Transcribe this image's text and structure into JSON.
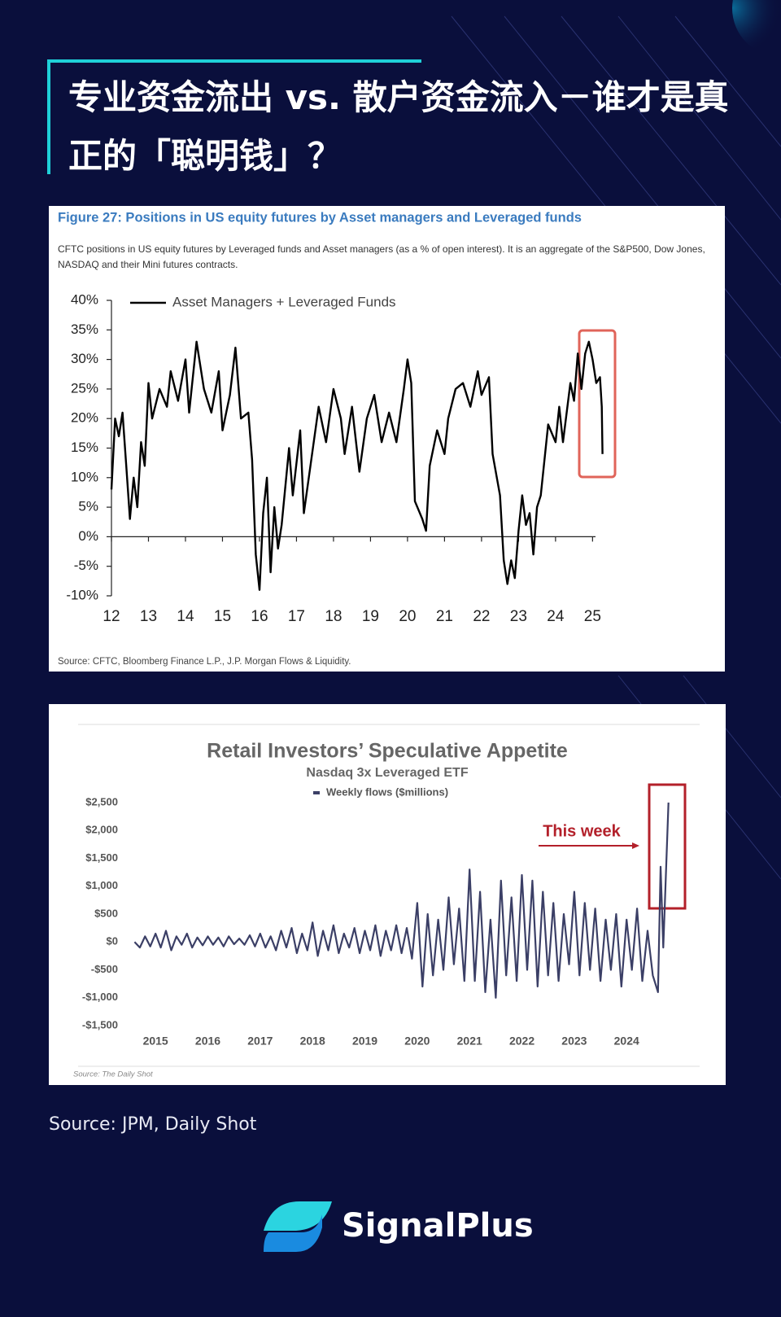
{
  "header": {
    "title": "专业资金流出 vs. 散户资金流入－谁才是真正的「聪明钱」？"
  },
  "chart_data": [
    {
      "type": "line",
      "title": "Figure 27: Positions in US equity futures by Asset managers and Leveraged funds",
      "subtitle": "CFTC positions in US equity futures by Leveraged funds and Asset managers (as a % of open interest). It is an aggregate of the S&P500, Dow Jones, NASDAQ and their Mini futures contracts.",
      "source": "Source: CFTC, Bloomberg Finance L.P., J.P. Morgan Flows & Liquidity.",
      "x": [
        12.0,
        12.1,
        12.2,
        12.3,
        12.4,
        12.5,
        12.6,
        12.7,
        12.8,
        12.9,
        13.0,
        13.1,
        13.3,
        13.5,
        13.6,
        13.8,
        14.0,
        14.1,
        14.3,
        14.5,
        14.7,
        14.9,
        15.0,
        15.2,
        15.35,
        15.5,
        15.7,
        15.8,
        15.9,
        16.0,
        16.1,
        16.2,
        16.3,
        16.4,
        16.5,
        16.6,
        16.8,
        16.9,
        17.1,
        17.2,
        17.4,
        17.6,
        17.8,
        18.0,
        18.2,
        18.3,
        18.5,
        18.7,
        18.9,
        19.1,
        19.3,
        19.5,
        19.7,
        19.9,
        20.0,
        20.1,
        20.2,
        20.4,
        20.5,
        20.6,
        20.8,
        21.0,
        21.1,
        21.3,
        21.5,
        21.7,
        21.9,
        22.0,
        22.2,
        22.3,
        22.5,
        22.6,
        22.7,
        22.8,
        22.9,
        23.0,
        23.1,
        23.2,
        23.3,
        23.4,
        23.5,
        23.6,
        23.8,
        24.0,
        24.1,
        24.2,
        24.4,
        24.5,
        24.6,
        24.7,
        24.8,
        24.9,
        25.0,
        25.1,
        25.2,
        25.25,
        25.27
      ],
      "series": [
        {
          "name": "Asset Managers + Leveraged Funds",
          "color": "#000000",
          "values": [
            8,
            20,
            17,
            21,
            12,
            3,
            10,
            5,
            16,
            12,
            26,
            20,
            25,
            22,
            28,
            23,
            30,
            21,
            33,
            25,
            21,
            28,
            18,
            24,
            32,
            20,
            21,
            13,
            -3,
            -9,
            4,
            10,
            -6,
            5,
            -2,
            2,
            15,
            7,
            18,
            4,
            13,
            22,
            16,
            25,
            20,
            14,
            22,
            11,
            20,
            24,
            16,
            21,
            16,
            25,
            30,
            26,
            6,
            3,
            1,
            12,
            18,
            14,
            20,
            25,
            26,
            22,
            28,
            24,
            27,
            14,
            7,
            -4,
            -8,
            -4,
            -7,
            1,
            7,
            2,
            4,
            -3,
            5,
            7,
            19,
            16,
            22,
            16,
            26,
            23,
            31,
            25,
            31,
            33,
            30,
            26,
            27,
            22,
            14
          ]
        }
      ],
      "xlim": [
        12,
        25.3
      ],
      "xticks": [
        12,
        13,
        14,
        15,
        16,
        17,
        18,
        19,
        20,
        21,
        22,
        23,
        24,
        25
      ],
      "ylim": [
        -10,
        40
      ],
      "yticks": [
        {
          "value": -10,
          "label": "-10%"
        },
        {
          "value": -5,
          "label": "-5%"
        },
        {
          "value": 0,
          "label": "0%"
        },
        {
          "value": 5,
          "label": "5%"
        },
        {
          "value": 10,
          "label": "10%"
        },
        {
          "value": 15,
          "label": "15%"
        },
        {
          "value": 20,
          "label": "20%"
        },
        {
          "value": 25,
          "label": "25%"
        },
        {
          "value": 30,
          "label": "30%"
        },
        {
          "value": 35,
          "label": "35%"
        },
        {
          "value": 40,
          "label": "40%"
        }
      ],
      "grid": false
    },
    {
      "type": "line",
      "title": "Retail Investors’ Speculative Appetite",
      "subtitle": "Nasdaq 3x Leveraged ETF",
      "annotation": "This week",
      "source": "Source: The Daily Shot",
      "x": [
        2014.6,
        2014.7,
        2014.8,
        2014.9,
        2015.0,
        2015.1,
        2015.2,
        2015.3,
        2015.4,
        2015.5,
        2015.6,
        2015.7,
        2015.8,
        2015.9,
        2016.0,
        2016.1,
        2016.2,
        2016.3,
        2016.4,
        2016.5,
        2016.6,
        2016.7,
        2016.8,
        2016.9,
        2017.0,
        2017.1,
        2017.2,
        2017.3,
        2017.4,
        2017.5,
        2017.6,
        2017.7,
        2017.8,
        2017.9,
        2018.0,
        2018.1,
        2018.2,
        2018.3,
        2018.4,
        2018.5,
        2018.6,
        2018.7,
        2018.8,
        2018.9,
        2019.0,
        2019.1,
        2019.2,
        2019.3,
        2019.4,
        2019.5,
        2019.6,
        2019.7,
        2019.8,
        2019.9,
        2020.0,
        2020.1,
        2020.2,
        2020.3,
        2020.4,
        2020.5,
        2020.6,
        2020.7,
        2020.8,
        2020.9,
        2021.0,
        2021.1,
        2021.2,
        2021.3,
        2021.4,
        2021.5,
        2021.6,
        2021.7,
        2021.8,
        2021.9,
        2022.0,
        2022.1,
        2022.2,
        2022.3,
        2022.4,
        2022.5,
        2022.6,
        2022.7,
        2022.8,
        2022.9,
        2023.0,
        2023.1,
        2023.2,
        2023.3,
        2023.4,
        2023.5,
        2023.6,
        2023.7,
        2023.8,
        2023.9,
        2024.0,
        2024.1,
        2024.2,
        2024.3,
        2024.4,
        2024.5,
        2024.6,
        2024.65,
        2024.7,
        2024.8
      ],
      "series": [
        {
          "name": "Weekly flows ($millions)",
          "color": "#3b3f66",
          "values": [
            0,
            -100,
            100,
            -80,
            150,
            -100,
            200,
            -150,
            100,
            -50,
            150,
            -100,
            80,
            -60,
            100,
            -50,
            80,
            -80,
            100,
            -40,
            60,
            -50,
            120,
            -80,
            150,
            -100,
            100,
            -150,
            200,
            -100,
            250,
            -200,
            150,
            -150,
            350,
            -250,
            200,
            -150,
            300,
            -200,
            150,
            -100,
            250,
            -200,
            200,
            -150,
            300,
            -250,
            200,
            -150,
            300,
            -200,
            250,
            -300,
            700,
            -800,
            500,
            -600,
            400,
            -500,
            800,
            -400,
            600,
            -700,
            1300,
            -700,
            900,
            -900,
            400,
            -1000,
            1100,
            -600,
            800,
            -700,
            1200,
            -500,
            1100,
            -800,
            900,
            -600,
            700,
            -700,
            500,
            -400,
            900,
            -600,
            700,
            -500,
            600,
            -700,
            400,
            -500,
            500,
            -800,
            400,
            -500,
            600,
            -700,
            200,
            -600,
            -900,
            1350,
            -100,
            2500
          ]
        }
      ],
      "xlim": [
        2014.5,
        2025.1
      ],
      "xticks": [
        2015,
        2016,
        2017,
        2018,
        2019,
        2020,
        2021,
        2022,
        2023,
        2024
      ],
      "ylim": [
        -1500,
        2500
      ],
      "yticks": [
        {
          "value": -1500,
          "label": "-$1,500"
        },
        {
          "value": -1000,
          "label": "-$1,000"
        },
        {
          "value": -500,
          "label": "-$500"
        },
        {
          "value": 0,
          "label": "$0"
        },
        {
          "value": 500,
          "label": "$500"
        },
        {
          "value": 1000,
          "label": "$1,000"
        },
        {
          "value": 1500,
          "label": "$1,500"
        },
        {
          "value": 2000,
          "label": "$2,000"
        },
        {
          "value": 2500,
          "label": "$2,500"
        }
      ],
      "grid": false
    }
  ],
  "source": "Source: JPM, Daily Shot",
  "brand": "SignalPlus"
}
